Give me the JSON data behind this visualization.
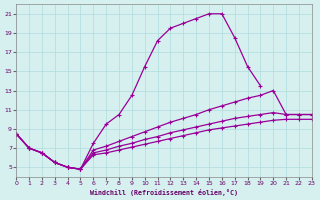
{
  "xlabel": "Windchill (Refroidissement éolien,°C)",
  "background_color": "#d6f0f0",
  "grid_color": "#b0dcdc",
  "line_color": "#990099",
  "xlim": [
    0,
    23
  ],
  "ylim": [
    4,
    22
  ],
  "xticks": [
    0,
    1,
    2,
    3,
    4,
    5,
    6,
    7,
    8,
    9,
    10,
    11,
    12,
    13,
    14,
    15,
    16,
    17,
    18,
    19,
    20,
    21,
    22,
    23
  ],
  "yticks": [
    5,
    7,
    9,
    11,
    13,
    15,
    17,
    19,
    21
  ],
  "curve1_x": [
    0,
    1,
    2,
    3,
    4,
    5,
    6,
    7,
    8,
    9,
    10,
    11,
    12,
    13,
    14,
    15,
    16,
    17,
    18,
    19
  ],
  "curve1_y": [
    8.5,
    7.0,
    6.5,
    5.5,
    5.0,
    4.8,
    7.5,
    9.5,
    10.5,
    12.5,
    15.5,
    18.2,
    19.5,
    20.0,
    20.5,
    21.0,
    21.0,
    18.5,
    15.5,
    13.5
  ],
  "curve2_x": [
    0,
    1,
    2,
    3,
    4,
    5,
    6,
    7,
    8,
    9,
    10,
    11,
    12,
    13,
    14,
    15,
    16,
    17,
    18,
    19,
    20,
    21,
    22,
    23
  ],
  "curve2_y": [
    8.5,
    7.0,
    6.5,
    5.5,
    5.0,
    4.8,
    6.8,
    7.2,
    7.7,
    8.2,
    8.7,
    9.2,
    9.7,
    10.1,
    10.5,
    11.0,
    11.4,
    11.8,
    12.2,
    12.5,
    13.0,
    10.5,
    10.5,
    10.5
  ],
  "curve3_x": [
    0,
    1,
    2,
    3,
    4,
    5,
    6,
    7,
    8,
    9,
    10,
    11,
    12,
    13,
    14,
    15,
    16,
    17,
    18,
    19,
    20,
    21,
    22,
    23
  ],
  "curve3_y": [
    8.5,
    7.0,
    6.5,
    5.5,
    5.0,
    4.8,
    6.5,
    6.8,
    7.2,
    7.5,
    7.9,
    8.2,
    8.6,
    8.9,
    9.2,
    9.5,
    9.8,
    10.1,
    10.3,
    10.5,
    10.7,
    10.5,
    10.5,
    10.5
  ],
  "curve4_x": [
    0,
    1,
    2,
    3,
    4,
    5,
    6,
    7,
    8,
    9,
    10,
    11,
    12,
    13,
    14,
    15,
    16,
    17,
    18,
    19,
    20,
    21,
    22,
    23
  ],
  "curve4_y": [
    8.5,
    7.0,
    6.5,
    5.5,
    5.0,
    4.8,
    6.3,
    6.5,
    6.8,
    7.1,
    7.4,
    7.7,
    8.0,
    8.3,
    8.6,
    8.9,
    9.1,
    9.3,
    9.5,
    9.7,
    9.9,
    10.0,
    10.0,
    10.0
  ]
}
